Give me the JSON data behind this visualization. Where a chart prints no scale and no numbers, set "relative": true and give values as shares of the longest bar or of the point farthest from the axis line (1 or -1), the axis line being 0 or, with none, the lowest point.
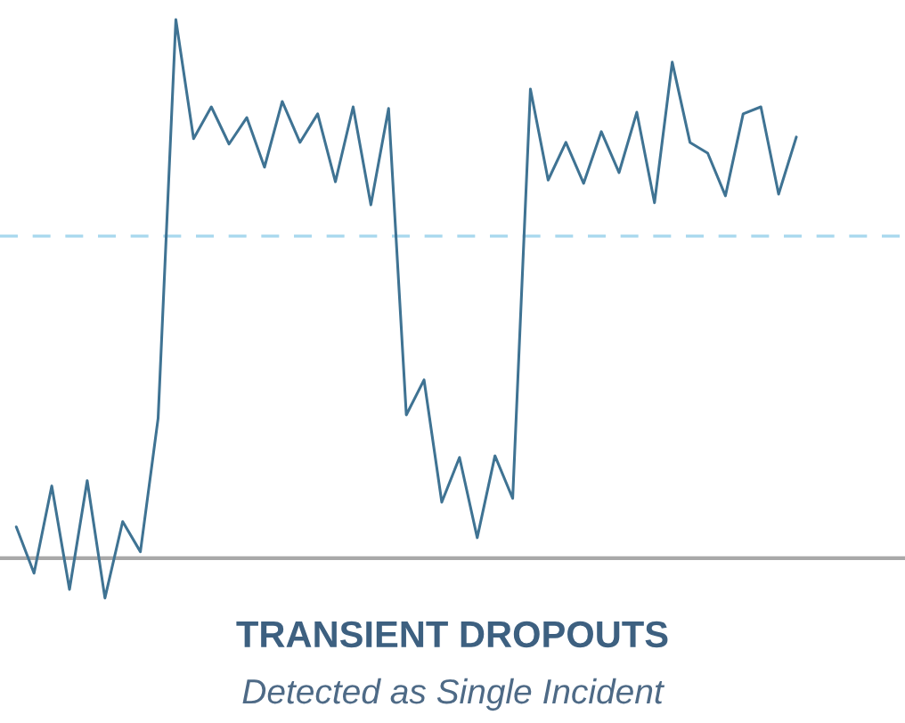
{
  "chart_data": {
    "type": "line",
    "relative": true,
    "title": "TRANSIENT DROPOUTS",
    "subtitle": "Detected as Single Incident",
    "categories": [
      null,
      null,
      null,
      null,
      null,
      null,
      null,
      null,
      null,
      null,
      null,
      null,
      null,
      null,
      null,
      null,
      null,
      null,
      null,
      null,
      null,
      null,
      null,
      null,
      null,
      null,
      null,
      null,
      null,
      null,
      null,
      null,
      null,
      null,
      null,
      null,
      null,
      null,
      null,
      null,
      null,
      null,
      null,
      null,
      null
    ],
    "series": [
      {
        "color": "#3f7393",
        "values": [
          0.058,
          -0.028,
          0.134,
          -0.058,
          0.144,
          -0.074,
          0.068,
          0.012,
          0.26,
          1,
          0.779,
          0.838,
          0.769,
          0.818,
          0.726,
          0.848,
          0.772,
          0.825,
          0.699,
          0.838,
          0.656,
          0.835,
          0.266,
          0.331,
          0.104,
          0.187,
          0.038,
          0.19,
          0.111,
          0.871,
          0.702,
          0.772,
          0.696,
          0.792,
          0.716,
          0.828,
          0.66,
          0.921,
          0.772,
          0.752,
          0.673,
          0.825,
          0.838,
          0.676,
          0.782
        ]
      }
    ],
    "ref_lines": [
      {
        "axis": "y",
        "value": 0.598,
        "color": "#a8d8ee",
        "line_style": "dashed"
      }
    ],
    "marker": "none",
    "line_style": "solid"
  }
}
